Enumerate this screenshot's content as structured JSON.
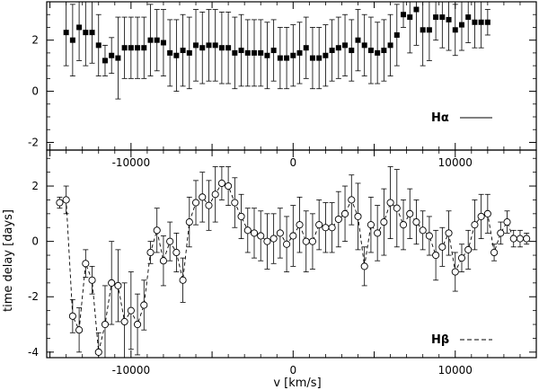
{
  "chart_data": [
    {
      "type": "line",
      "panel": "top",
      "ylim": [
        -2.3,
        3.5
      ],
      "xlim": [
        -15200,
        15000
      ],
      "yticks": [
        -2,
        0,
        2
      ],
      "xticks": [
        -10000,
        0,
        10000
      ],
      "xticklabels": [
        "-10000",
        "0",
        "10000"
      ],
      "yticklabels": [
        "-2",
        "0",
        "2"
      ],
      "marker": "filled-square",
      "line_style": "none",
      "legend": {
        "label": "Hα",
        "line": "solid",
        "position": "bottom-right"
      },
      "x": [
        -14000,
        -13600,
        -13200,
        -12800,
        -12400,
        -12000,
        -11600,
        -11200,
        -10800,
        -10400,
        -10000,
        -9600,
        -9200,
        -8800,
        -8400,
        -8000,
        -7600,
        -7200,
        -6800,
        -6400,
        -6000,
        -5600,
        -5200,
        -4800,
        -4400,
        -4000,
        -3600,
        -3200,
        -2800,
        -2400,
        -2000,
        -1600,
        -1200,
        -800,
        -400,
        0,
        400,
        800,
        1200,
        1600,
        2000,
        2400,
        2800,
        3200,
        3600,
        4000,
        4400,
        4800,
        5200,
        5600,
        6000,
        6400,
        6800,
        7200,
        7600,
        8000,
        8400,
        8800,
        9200,
        9600,
        10000,
        10400,
        10800,
        11200,
        11600,
        12000
      ],
      "y": [
        2.3,
        2.0,
        2.5,
        2.3,
        2.3,
        1.8,
        1.2,
        1.4,
        1.3,
        1.7,
        1.7,
        1.7,
        1.7,
        2.0,
        2.0,
        1.9,
        1.5,
        1.4,
        1.6,
        1.5,
        1.8,
        1.7,
        1.8,
        1.8,
        1.7,
        1.7,
        1.5,
        1.6,
        1.5,
        1.5,
        1.5,
        1.4,
        1.6,
        1.3,
        1.3,
        1.4,
        1.5,
        1.7,
        1.3,
        1.3,
        1.4,
        1.6,
        1.7,
        1.8,
        1.6,
        2.0,
        1.8,
        1.6,
        1.5,
        1.6,
        1.8,
        2.2,
        3.0,
        2.9,
        3.2,
        2.4,
        2.4,
        2.9,
        2.9,
        2.8,
        2.4,
        2.6,
        2.9,
        2.7,
        2.7,
        2.7
      ],
      "err": [
        1.3,
        1.4,
        1.3,
        1.3,
        1.2,
        1.2,
        0.6,
        0.7,
        1.6,
        1.2,
        1.2,
        1.2,
        1.2,
        1.4,
        1.2,
        1.3,
        1.3,
        1.4,
        1.4,
        1.4,
        1.4,
        1.4,
        1.4,
        1.4,
        1.4,
        1.4,
        1.4,
        1.4,
        1.3,
        1.3,
        1.3,
        1.3,
        1.2,
        1.2,
        1.2,
        1.2,
        1.2,
        1.2,
        1.2,
        1.2,
        1.2,
        1.2,
        1.2,
        1.2,
        1.2,
        1.2,
        1.2,
        1.3,
        1.2,
        1.2,
        1.2,
        1.2,
        0.5,
        1.4,
        1.4,
        1.4,
        1.2,
        0.9,
        1.2,
        1.2,
        1.0,
        1.0,
        1.0,
        1.0,
        1.0,
        0.5
      ]
    },
    {
      "type": "line",
      "panel": "bottom",
      "ylim": [
        -4.2,
        3.3
      ],
      "xlim": [
        -15200,
        15000
      ],
      "yticks": [
        -4,
        -2,
        0,
        2
      ],
      "xticks": [
        -10000,
        0,
        10000
      ],
      "xticklabels": [
        "-10000",
        "0",
        "10000"
      ],
      "yticklabels": [
        "-4",
        "-2",
        "0",
        "2"
      ],
      "xlabel": "v [km/s]",
      "ylabel": "time delay [days]",
      "marker": "open-circle",
      "line_style": "dashed",
      "legend": {
        "label": "Hβ",
        "line": "dashed",
        "position": "bottom-right"
      },
      "x": [
        -14400,
        -14000,
        -13600,
        -13200,
        -12800,
        -12400,
        -12000,
        -11600,
        -11200,
        -10800,
        -10400,
        -10000,
        -9600,
        -9200,
        -8800,
        -8400,
        -8000,
        -7600,
        -7200,
        -6800,
        -6400,
        -6000,
        -5600,
        -5200,
        -4800,
        -4400,
        -4000,
        -3600,
        -3200,
        -2800,
        -2400,
        -2000,
        -1600,
        -1200,
        -800,
        -400,
        0,
        400,
        800,
        1200,
        1600,
        2000,
        2400,
        2800,
        3200,
        3600,
        4000,
        4400,
        4800,
        5200,
        5600,
        6000,
        6400,
        6800,
        7200,
        7600,
        8000,
        8400,
        8800,
        9200,
        9600,
        10000,
        10400,
        10800,
        11200,
        11600,
        12000,
        12400,
        12800,
        13200,
        13600,
        14000,
        14400
      ],
      "y": [
        1.4,
        1.5,
        -2.7,
        -3.2,
        -0.8,
        -1.4,
        -4.0,
        -3.0,
        -1.5,
        -1.6,
        -2.9,
        -2.5,
        -3.0,
        -2.3,
        -0.4,
        0.4,
        -0.7,
        0.0,
        -0.4,
        -1.4,
        0.7,
        1.4,
        1.6,
        1.3,
        1.7,
        2.1,
        2.0,
        1.4,
        0.9,
        0.4,
        0.3,
        0.2,
        0.0,
        0.1,
        0.3,
        -0.1,
        0.2,
        0.6,
        0.0,
        0.0,
        0.6,
        0.5,
        0.5,
        0.8,
        1.0,
        1.5,
        0.9,
        -0.9,
        0.6,
        0.3,
        0.7,
        1.4,
        1.2,
        0.6,
        1.0,
        0.7,
        0.4,
        0.2,
        -0.5,
        -0.2,
        0.3,
        -1.1,
        -0.6,
        -0.3,
        0.6,
        0.9,
        1.0,
        -0.4,
        0.3,
        0.7,
        0.1,
        0.1,
        0.1
      ],
      "err": [
        0.2,
        0.5,
        0.6,
        0.8,
        0.5,
        0.5,
        0.7,
        1.4,
        1.5,
        1.3,
        1.4,
        1.4,
        1.1,
        0.9,
        0.4,
        0.8,
        0.9,
        0.7,
        0.7,
        0.8,
        0.9,
        0.8,
        0.9,
        0.9,
        1.0,
        0.6,
        0.7,
        0.9,
        0.8,
        0.8,
        0.9,
        0.9,
        1.0,
        0.9,
        0.9,
        1.0,
        1.1,
        1.0,
        1.1,
        1.0,
        0.9,
        0.9,
        0.9,
        1.0,
        1.0,
        0.9,
        1.2,
        0.7,
        1.0,
        1.0,
        1.2,
        1.3,
        1.4,
        0.9,
        0.9,
        0.8,
        0.7,
        0.7,
        0.9,
        0.7,
        0.8,
        0.7,
        0.5,
        0.7,
        0.9,
        0.8,
        0.7,
        0.3,
        0.4,
        0.4,
        0.3,
        0.3,
        0.2
      ]
    }
  ]
}
